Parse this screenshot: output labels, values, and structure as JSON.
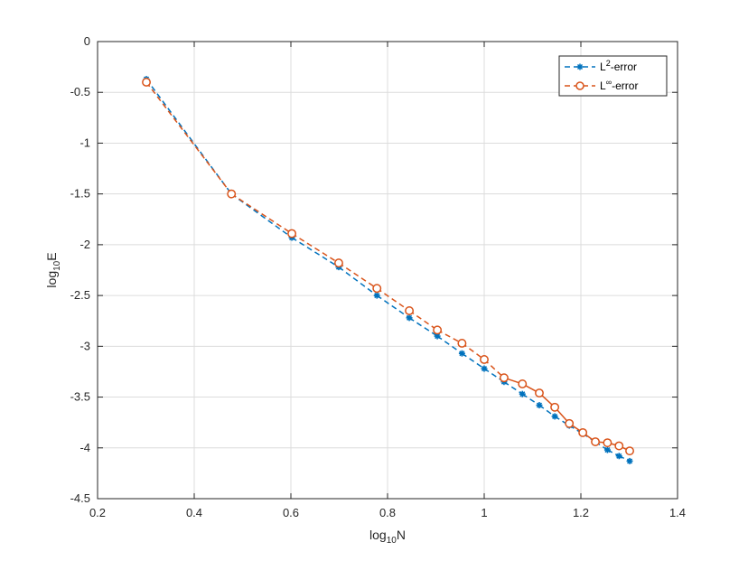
{
  "chart_data": {
    "type": "line",
    "xlabel": "log",
    "xlabel_sub": "10",
    "xlabel_tail": "N",
    "ylabel": "log",
    "ylabel_sub": "10",
    "ylabel_tail": "E",
    "xlim": [
      0.2,
      1.4
    ],
    "ylim": [
      -4.5,
      0
    ],
    "xticks": [
      0.2,
      0.4,
      0.6,
      0.8,
      1,
      1.2,
      1.4
    ],
    "xtick_labels": [
      "0.2",
      "0.4",
      "0.6",
      "0.8",
      "1",
      "1.2",
      "1.4"
    ],
    "yticks": [
      0,
      -0.5,
      -1,
      -1.5,
      -2,
      -2.5,
      -3,
      -3.5,
      -4,
      -4.5
    ],
    "ytick_labels": [
      "0",
      "-0.5",
      "-1",
      "-1.5",
      "-2",
      "-2.5",
      "-3",
      "-3.5",
      "-4",
      "-4.5"
    ],
    "grid": true,
    "legend_position": "top-right",
    "x": [
      0.301,
      0.477,
      0.602,
      0.699,
      0.778,
      0.845,
      0.903,
      0.954,
      1.0,
      1.041,
      1.079,
      1.114,
      1.146,
      1.176,
      1.204,
      1.23,
      1.255,
      1.279,
      1.301
    ],
    "series": [
      {
        "name": "L",
        "name_sup": "2",
        "name_tail": "-error",
        "color": "#0072BD",
        "marker": "asterisk",
        "line_style": "dashed",
        "values": [
          -0.37,
          -1.5,
          -1.93,
          -2.22,
          -2.5,
          -2.72,
          -2.9,
          -3.07,
          -3.22,
          -3.35,
          -3.47,
          -3.58,
          -3.69,
          -3.78,
          -3.86,
          -3.94,
          -4.02,
          -4.08,
          -4.13
        ]
      },
      {
        "name": "L",
        "name_sup": "∞",
        "name_tail": "-error",
        "color": "#D95319",
        "marker": "circle",
        "line_style": "dashed-solid",
        "values": [
          -0.4,
          -1.5,
          -1.89,
          -2.18,
          -2.43,
          -2.65,
          -2.84,
          -2.97,
          -3.13,
          -3.31,
          -3.37,
          -3.46,
          -3.6,
          -3.76,
          -3.85,
          -3.94,
          -3.95,
          -3.98,
          -4.03
        ]
      }
    ]
  }
}
